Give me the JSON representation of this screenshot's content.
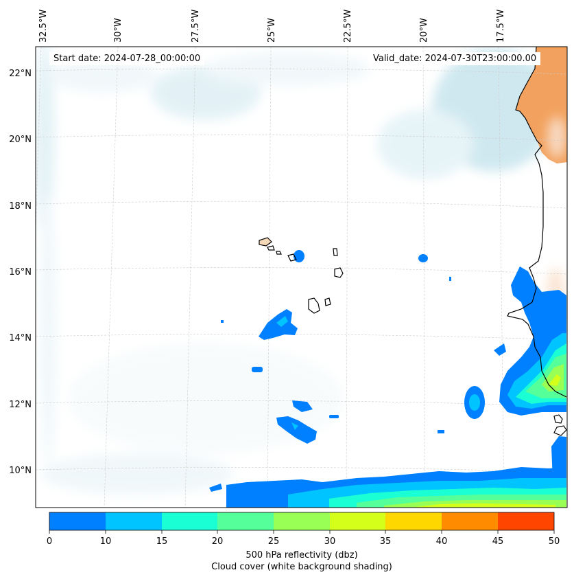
{
  "annotations": {
    "start": "Start date: 2024-07-28_00:00:00",
    "valid": "Valid_date: 2024-07-30T23:00:00.00"
  },
  "axes": {
    "lon_labels": [
      "32.5°W",
      "30°W",
      "27.5°W",
      "25°W",
      "22.5°W",
      "20°W",
      "17.5°W"
    ],
    "lat_labels": [
      "22°N",
      "20°N",
      "18°N",
      "16°N",
      "14°N",
      "12°N",
      "10°N"
    ]
  },
  "colorbar": {
    "ticks": [
      "0",
      "10",
      "15",
      "20",
      "25",
      "30",
      "35",
      "40",
      "45",
      "50"
    ],
    "colors": [
      "#0080ff",
      "#00c4ff",
      "#1affd4",
      "#55ff99",
      "#99ff55",
      "#d4ff1a",
      "#ffd700",
      "#ff8c00",
      "#ff4500"
    ],
    "label_line1": "500 hPa reflectivity (dbz)",
    "label_line2": "Cloud cover (white background shading)"
  },
  "palette": {
    "cloud": "#a9d7e4",
    "land": "#f2a25e",
    "grid": "#cccccc"
  }
}
